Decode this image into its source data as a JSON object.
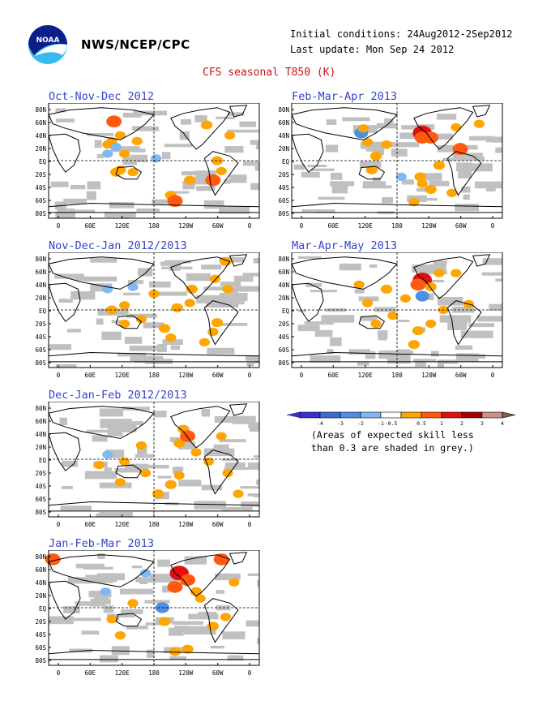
{
  "header": {
    "org": "NWS/NCEP/CPC",
    "initial_conditions": "Initial conditions: 24Aug2012-2Sep2012",
    "last_update": "Last update: Mon Sep 24 2012",
    "title": "CFS seasonal T850 (K)",
    "logo_text": "NOAA"
  },
  "axis": {
    "lat_labels": [
      "80N",
      "60N",
      "40N",
      "20N",
      "EQ",
      "20S",
      "40S",
      "60S",
      "80S"
    ],
    "lon_labels": [
      "0",
      "60E",
      "120E",
      "180",
      "120W",
      "60W",
      "0"
    ]
  },
  "panels": [
    {
      "id": "ond",
      "title": "Oct-Nov-Dec 2012",
      "anoms": [
        [
          0.31,
          0.16,
          1.5
        ],
        [
          0.3,
          0.33,
          0.5
        ],
        [
          0.34,
          0.28,
          0.5
        ],
        [
          0.28,
          0.36,
          0.5
        ],
        [
          0.28,
          0.44,
          -0.5
        ],
        [
          0.51,
          0.48,
          -0.5
        ],
        [
          0.32,
          0.38,
          -0.5
        ],
        [
          0.32,
          0.6,
          0.7
        ],
        [
          0.75,
          0.19,
          0.7
        ],
        [
          0.34,
          0.58,
          0.7
        ],
        [
          0.58,
          0.8,
          0.7
        ],
        [
          0.6,
          0.85,
          1.5
        ],
        [
          0.67,
          0.67,
          0.7
        ],
        [
          0.8,
          0.5,
          0.7
        ],
        [
          0.78,
          0.67,
          1.5
        ],
        [
          0.82,
          0.59,
          0.5
        ],
        [
          0.42,
          0.33,
          0.5
        ],
        [
          0.86,
          0.28,
          0.5
        ],
        [
          0.4,
          0.6,
          0.5
        ],
        [
          0.36,
          0.44,
          0.5
        ]
      ],
      "skill_note": "grey=low skill"
    },
    {
      "id": "fma",
      "title": "Feb-Mar-Apr 2013",
      "anoms": [
        [
          0.62,
          0.26,
          2.3
        ],
        [
          0.66,
          0.3,
          1.5
        ],
        [
          0.62,
          0.3,
          1.5
        ],
        [
          0.33,
          0.26,
          -1.2
        ],
        [
          0.4,
          0.46,
          0.7
        ],
        [
          0.61,
          0.64,
          0.7
        ],
        [
          0.36,
          0.34,
          0.5
        ],
        [
          0.8,
          0.38,
          0.5
        ],
        [
          0.78,
          0.21,
          0.5
        ],
        [
          0.52,
          0.64,
          -0.5
        ],
        [
          0.62,
          0.7,
          0.5
        ],
        [
          0.76,
          0.78,
          0.5
        ],
        [
          0.7,
          0.54,
          0.7
        ],
        [
          0.38,
          0.58,
          0.7
        ],
        [
          0.8,
          0.4,
          1.5
        ],
        [
          0.66,
          0.75,
          0.7
        ],
        [
          0.58,
          0.86,
          0.5
        ],
        [
          0.45,
          0.36,
          0.5
        ],
        [
          0.89,
          0.18,
          0.5
        ],
        [
          0.34,
          0.22,
          0.5
        ]
      ],
      "skill_note": "grey=low skill"
    },
    {
      "id": "ndj",
      "title": "Nov-Dec-Jan 2012/2013",
      "anoms": [
        [
          0.84,
          0.08,
          0.7
        ],
        [
          0.28,
          0.32,
          -0.5
        ],
        [
          0.68,
          0.32,
          0.7
        ],
        [
          0.3,
          0.5,
          0.7
        ],
        [
          0.36,
          0.46,
          0.5
        ],
        [
          0.55,
          0.66,
          0.7
        ],
        [
          0.58,
          0.74,
          0.5
        ],
        [
          0.78,
          0.69,
          0.5
        ],
        [
          0.61,
          0.48,
          0.7
        ],
        [
          0.8,
          0.61,
          0.7
        ],
        [
          0.74,
          0.78,
          0.5
        ],
        [
          0.5,
          0.36,
          0.5
        ],
        [
          0.44,
          0.58,
          0.5
        ],
        [
          0.67,
          0.44,
          0.5
        ],
        [
          0.36,
          0.62,
          0.5
        ],
        [
          0.85,
          0.32,
          0.5
        ],
        [
          0.79,
          0.23,
          0.5
        ],
        [
          0.4,
          0.3,
          -0.5
        ]
      ],
      "skill_note": "grey=low skill"
    },
    {
      "id": "mam",
      "title": "Mar-Apr-May 2013",
      "anoms": [
        [
          0.62,
          0.24,
          2.3
        ],
        [
          0.6,
          0.28,
          1.5
        ],
        [
          0.66,
          0.3,
          0.7
        ],
        [
          0.62,
          0.38,
          -1.2
        ],
        [
          0.45,
          0.32,
          0.7
        ],
        [
          0.6,
          0.68,
          0.7
        ],
        [
          0.58,
          0.8,
          0.7
        ],
        [
          0.4,
          0.62,
          0.5
        ],
        [
          0.72,
          0.5,
          0.5
        ],
        [
          0.78,
          0.18,
          0.5
        ],
        [
          0.32,
          0.28,
          0.5
        ],
        [
          0.84,
          0.45,
          0.5
        ],
        [
          0.48,
          0.55,
          0.5
        ],
        [
          0.66,
          0.62,
          0.5
        ],
        [
          0.36,
          0.44,
          0.5
        ],
        [
          0.7,
          0.18,
          0.5
        ],
        [
          0.54,
          0.4,
          0.5
        ]
      ],
      "skill_note": "grey=low skill"
    },
    {
      "id": "djf",
      "title": "Dec-Jan-Feb 2012/2013",
      "anoms": [
        [
          0.64,
          0.24,
          0.7
        ],
        [
          0.62,
          0.36,
          0.7
        ],
        [
          0.66,
          0.3,
          1.5
        ],
        [
          0.28,
          0.46,
          -0.5
        ],
        [
          0.52,
          0.8,
          0.7
        ],
        [
          0.62,
          0.64,
          0.5
        ],
        [
          0.24,
          0.55,
          0.5
        ],
        [
          0.36,
          0.52,
          0.5
        ],
        [
          0.76,
          0.52,
          0.5
        ],
        [
          0.46,
          0.62,
          0.5
        ],
        [
          0.58,
          0.72,
          0.7
        ],
        [
          0.82,
          0.3,
          0.5
        ],
        [
          0.44,
          0.38,
          0.5
        ],
        [
          0.7,
          0.44,
          0.5
        ],
        [
          0.85,
          0.62,
          0.5
        ],
        [
          0.34,
          0.7,
          0.5
        ],
        [
          0.9,
          0.8,
          0.5
        ]
      ],
      "skill_note": "grey=low skill"
    },
    {
      "id": "jfm",
      "title": "Jan-Feb-Mar 2013",
      "anoms": [
        [
          0.02,
          0.08,
          1.5
        ],
        [
          0.62,
          0.2,
          2.3
        ],
        [
          0.66,
          0.26,
          1.5
        ],
        [
          0.6,
          0.32,
          1.5
        ],
        [
          0.7,
          0.36,
          0.7
        ],
        [
          0.54,
          0.5,
          -1.2
        ],
        [
          0.82,
          0.08,
          1.5
        ],
        [
          0.27,
          0.36,
          -0.5
        ],
        [
          0.55,
          0.62,
          0.7
        ],
        [
          0.6,
          0.88,
          0.7
        ],
        [
          0.66,
          0.86,
          0.7
        ],
        [
          0.3,
          0.6,
          0.5
        ],
        [
          0.72,
          0.42,
          0.5
        ],
        [
          0.78,
          0.66,
          0.7
        ],
        [
          0.84,
          0.58,
          0.5
        ],
        [
          0.4,
          0.46,
          0.5
        ],
        [
          0.88,
          0.28,
          0.5
        ],
        [
          0.34,
          0.74,
          0.5
        ],
        [
          0.46,
          0.2,
          -0.5
        ]
      ],
      "skill_note": "grey=low skill"
    }
  ],
  "legend": {
    "tick_labels": [
      "-4",
      "-3",
      "-2",
      "-1",
      "-0.5",
      "0.5",
      "1",
      "2",
      "3",
      "4"
    ],
    "bin_colors": [
      "#3a2fd0",
      "#3d6ad6",
      "#4b8fe6",
      "#82b8f2",
      "#ffffff",
      "#ffa500",
      "#ff5a10",
      "#e10f0f",
      "#a30000",
      "#c8918a"
    ],
    "under_color": "#3a2fd0",
    "over_color": "#8a5a4e",
    "note_line1": "(Areas of expected skill less",
    "note_line2": "than 0.3 are shaded in grey.)"
  }
}
